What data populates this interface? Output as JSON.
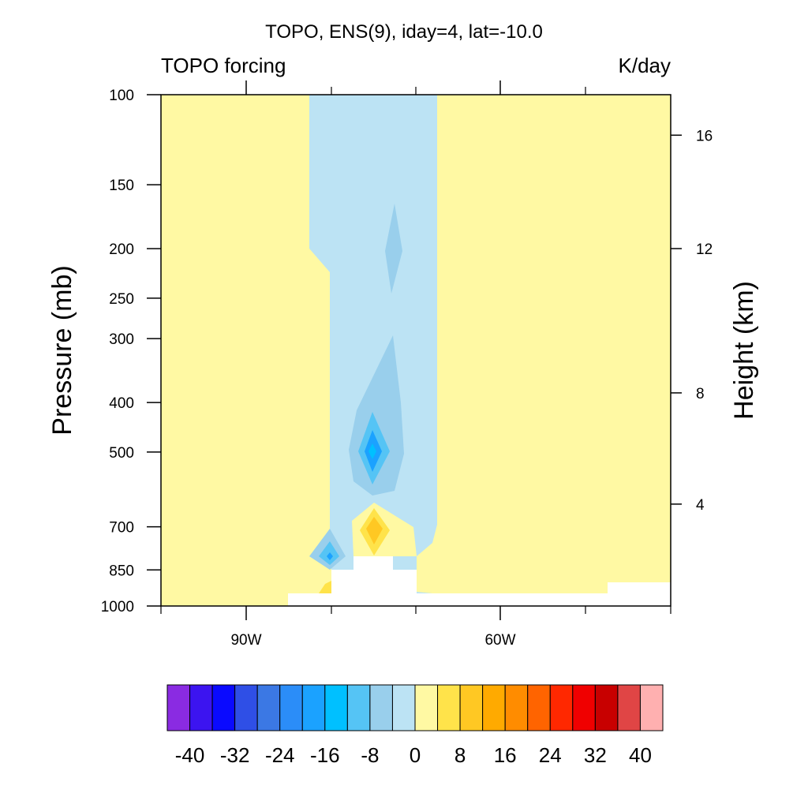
{
  "chart_data": {
    "type": "heatmap",
    "title": "TOPO, ENS(9), iday=4, lat=-10.0",
    "left_subtitle": "TOPO forcing",
    "right_subtitle": "K/day",
    "ylabel": "Pressure (mb)",
    "ylabel_right": "Height (km)",
    "x_ticks": [
      {
        "value": -90,
        "label": "90W"
      },
      {
        "value": -60,
        "label": "60W"
      }
    ],
    "xlim": [
      -100,
      -40
    ],
    "x_minor_ticks": [
      -100,
      -90,
      -80,
      -70,
      -60,
      -50,
      -40
    ],
    "y_scale": "log",
    "ylim": [
      1000,
      100
    ],
    "y_ticks": [
      {
        "value": 100,
        "label": "100"
      },
      {
        "value": 150,
        "label": "150"
      },
      {
        "value": 200,
        "label": "200"
      },
      {
        "value": 250,
        "label": "250"
      },
      {
        "value": 300,
        "label": "300"
      },
      {
        "value": 400,
        "label": "400"
      },
      {
        "value": 500,
        "label": "500"
      },
      {
        "value": 700,
        "label": "700"
      },
      {
        "value": 850,
        "label": "850"
      },
      {
        "value": 1000,
        "label": "1000"
      }
    ],
    "height_ticks": [
      {
        "pressure": 120,
        "label": "16"
      },
      {
        "pressure": 200,
        "label": "12"
      },
      {
        "pressure": 383,
        "label": "8"
      },
      {
        "pressure": 632,
        "label": "4"
      }
    ],
    "colorbar": {
      "colors": [
        "#8a2be2",
        "#3c14f0",
        "#0a0aff",
        "#2f4fe6",
        "#3b78e4",
        "#2b8df8",
        "#1ba2ff",
        "#00c0ff",
        "#55c4f5",
        "#99cfec",
        "#bce3f4",
        "#fff9a3",
        "#ffe34a",
        "#ffc823",
        "#ffaa00",
        "#ff8c00",
        "#ff6400",
        "#ff2800",
        "#f00000",
        "#c80000",
        "#e04545",
        "#ffb0b0"
      ],
      "labels": [
        "-40",
        "-32",
        "-24",
        "-16",
        "-8",
        "0",
        "8",
        "16",
        "24",
        "32",
        "40"
      ]
    },
    "regions": [
      {
        "name": "background",
        "value": 2,
        "color": "#fff9a3"
      },
      {
        "name": "negative-band",
        "value": -2,
        "color": "#bce3f4",
        "lon": [
          -82.5,
          -67.5
        ],
        "p_range": [
          100,
          1000
        ]
      },
      {
        "name": "upper-minimum",
        "value": -6,
        "color": "#99cfec",
        "lon": -74,
        "p_center": 200
      },
      {
        "name": "midlevel-minimum",
        "value": -14,
        "color": "#00c0ff",
        "lon": -75,
        "p_center": 500
      },
      {
        "name": "low-maximum",
        "value": 6,
        "color": "#ffc823",
        "lon": -75,
        "p_center": 700
      },
      {
        "name": "low-minimum",
        "value": -10,
        "color": "#55c4f5",
        "lon": -81,
        "p_center": 820
      },
      {
        "name": "topography-mask",
        "color": "#ffffff"
      }
    ]
  }
}
